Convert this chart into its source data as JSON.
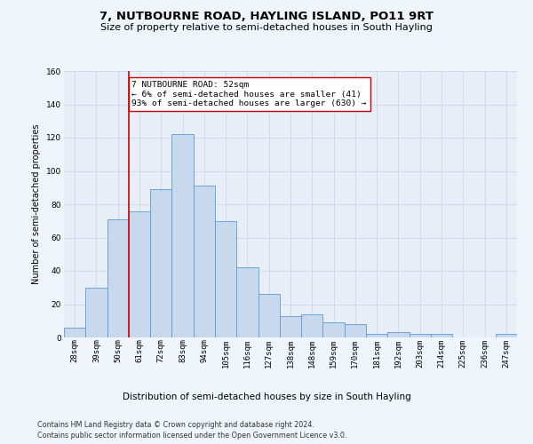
{
  "title": "7, NUTBOURNE ROAD, HAYLING ISLAND, PO11 9RT",
  "subtitle": "Size of property relative to semi-detached houses in South Hayling",
  "xlabel_bottom": "Distribution of semi-detached houses by size in South Hayling",
  "ylabel": "Number of semi-detached properties",
  "footnote1": "Contains HM Land Registry data © Crown copyright and database right 2024.",
  "footnote2": "Contains public sector information licensed under the Open Government Licence v3.0.",
  "categories": [
    "28sqm",
    "39sqm",
    "50sqm",
    "61sqm",
    "72sqm",
    "83sqm",
    "94sqm",
    "105sqm",
    "116sqm",
    "127sqm",
    "138sqm",
    "148sqm",
    "159sqm",
    "170sqm",
    "181sqm",
    "192sqm",
    "203sqm",
    "214sqm",
    "225sqm",
    "236sqm",
    "247sqm"
  ],
  "values": [
    6,
    30,
    71,
    76,
    89,
    122,
    91,
    70,
    42,
    26,
    13,
    14,
    9,
    8,
    2,
    3,
    2,
    2,
    0,
    0,
    2
  ],
  "bar_color": "#c8d9ee",
  "bar_edge_color": "#5b9bd5",
  "bar_edge_width": 0.6,
  "property_label": "7 NUTBOURNE ROAD: 52sqm",
  "pct_smaller": 6,
  "count_smaller": 41,
  "pct_larger": 93,
  "count_larger": 630,
  "annotation_box_color": "#ffffff",
  "annotation_box_edge": "#cc0000",
  "vline_color": "#cc0000",
  "vline_x": 2.5,
  "ylim": [
    0,
    160
  ],
  "yticks": [
    0,
    20,
    40,
    60,
    80,
    100,
    120,
    140,
    160
  ],
  "grid_color": "#cdd6e8",
  "background_color": "#e8eef8",
  "fig_background": "#f0f4fb",
  "title_fontsize": 9.5,
  "subtitle_fontsize": 8.0,
  "ylabel_fontsize": 7.0,
  "tick_fontsize": 6.5,
  "annotation_fontsize": 6.8,
  "xlabel_bottom_fontsize": 7.5,
  "footnote_fontsize": 5.8
}
